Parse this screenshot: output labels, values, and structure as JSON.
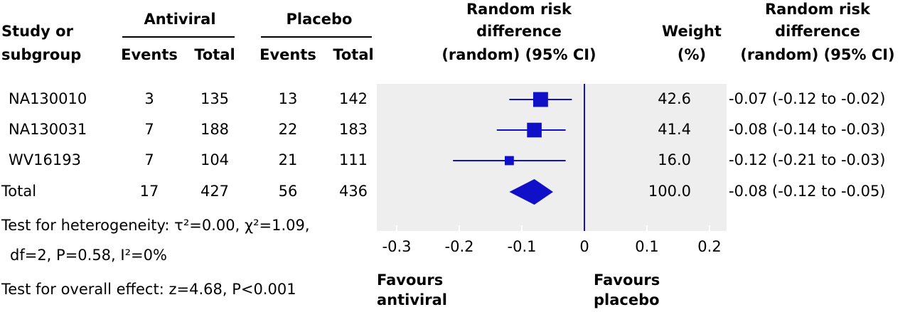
{
  "chart_data": {
    "type": "forest",
    "headers": {
      "study": [
        "Study or",
        "subgroup"
      ],
      "antiviral": "Antiviral",
      "placebo": "Placebo",
      "events": "Events",
      "total": "Total",
      "plot": [
        "Random risk",
        "difference",
        "(random) (95% CI)"
      ],
      "weight": [
        "Weight",
        "(%)"
      ],
      "ci": [
        "Random risk",
        "difference",
        "(random) (95% CI)"
      ]
    },
    "studies": [
      {
        "name": "NA130010",
        "antiviral_events": 3,
        "antiviral_total": 135,
        "placebo_events": 13,
        "placebo_total": 142,
        "estimate": -0.07,
        "ci_low": -0.12,
        "ci_high": -0.02,
        "weight": 42.6,
        "weight_label": "42.6",
        "ci_label": "-0.07 (-0.12 to -0.02)"
      },
      {
        "name": "NA130031",
        "antiviral_events": 7,
        "antiviral_total": 188,
        "placebo_events": 22,
        "placebo_total": 183,
        "estimate": -0.08,
        "ci_low": -0.14,
        "ci_high": -0.03,
        "weight": 41.4,
        "weight_label": "41.4",
        "ci_label": "-0.08 (-0.14 to -0.03)"
      },
      {
        "name": "WV16193",
        "antiviral_events": 7,
        "antiviral_total": 104,
        "placebo_events": 21,
        "placebo_total": 111,
        "estimate": -0.12,
        "ci_low": -0.21,
        "ci_high": -0.03,
        "weight": 16.0,
        "weight_label": "16.0",
        "ci_label": "-0.12 (-0.21 to -0.03)"
      }
    ],
    "total": {
      "name": "Total",
      "antiviral_events": 17,
      "antiviral_total": 427,
      "placebo_events": 56,
      "placebo_total": 436,
      "estimate": -0.08,
      "ci_low": -0.12,
      "ci_high": -0.05,
      "weight_label": "100.0",
      "ci_label": "-0.08 (-0.12 to -0.05)"
    },
    "footnotes": [
      "Test for heterogeneity: τ²=0.00, χ²=1.09,",
      "df=2, P=0.58, I²=0%",
      "Test for overall effect: z=4.68, P<0.001"
    ],
    "favours_left": [
      "Favours",
      "antiviral"
    ],
    "favours_right": [
      "Favours",
      "placebo"
    ],
    "xlim": [
      -0.3,
      0.2
    ],
    "xticks": [
      -0.3,
      -0.2,
      -0.1,
      0,
      0.1,
      0.2
    ],
    "color": "#1010c8",
    "background": "#eeeeee"
  }
}
